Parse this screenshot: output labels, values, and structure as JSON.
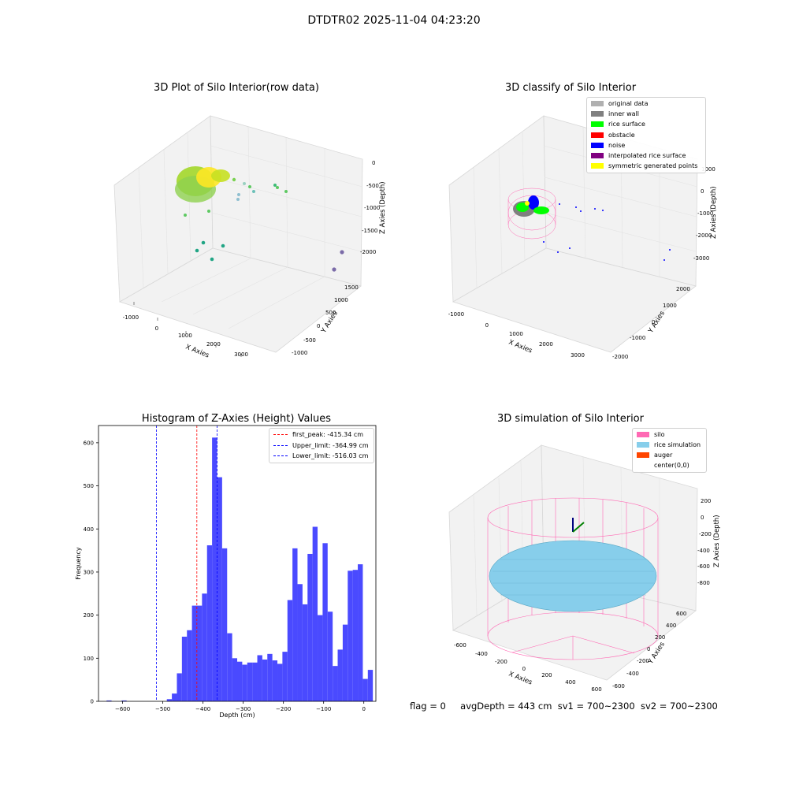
{
  "figure": {
    "suptitle": "DTDTR02 2025-11-04 04:23:20"
  },
  "panels": {
    "raw": {
      "title": "3D Plot of Silo Interior(row data)",
      "xlabel": "X Axies",
      "ylabel": "Y Axies",
      "zlabel": "Z Axies (Depth)",
      "xticks": [
        "-1000",
        "0",
        "1000",
        "2000",
        "3000"
      ],
      "yticks": [
        "-1000",
        "-500",
        "0",
        "500",
        "1000",
        "1500"
      ],
      "zticks": [
        "0",
        "-500",
        "-1000",
        "-1500",
        "-2000"
      ]
    },
    "classify": {
      "title": "3D classify of Silo Interior",
      "xlabel": "X Axies",
      "ylabel": "Y Axies",
      "zlabel": "Z Axies (Depth)",
      "xticks": [
        "-1000",
        "0",
        "1000",
        "2000",
        "3000"
      ],
      "yticks": [
        "-2000",
        "-1000",
        "0",
        "1000",
        "2000"
      ],
      "zticks": [
        "1000",
        "0",
        "-1000",
        "-2000",
        "-3000"
      ],
      "legend": [
        {
          "label": "original data",
          "color": "#b0b0b0"
        },
        {
          "label": "inner wall",
          "color": "#808080"
        },
        {
          "label": "rice surface",
          "color": "#00ff00"
        },
        {
          "label": "obstacle",
          "color": "#ff0000"
        },
        {
          "label": "noise",
          "color": "#0000ff"
        },
        {
          "label": "interpolated rice surface",
          "color": "#800080"
        },
        {
          "label": "symmetric generated points",
          "color": "#ffff00"
        }
      ]
    },
    "simulation": {
      "title": "3D simulation of Silo Interior",
      "xlabel": "X Axies",
      "ylabel": "Y Axies",
      "zlabel": "Z Axies (Depth)",
      "xticks": [
        "-600",
        "-400",
        "-200",
        "0",
        "200",
        "400",
        "600"
      ],
      "yticks": [
        "-600",
        "-400",
        "-200",
        "0",
        "200",
        "400",
        "600"
      ],
      "zticks": [
        "200",
        "0",
        "-200",
        "-400",
        "-600",
        "-800"
      ],
      "legend": [
        {
          "label": "silo",
          "color": "#ff69b4"
        },
        {
          "label": "rice simulation",
          "color": "#87ceeb"
        },
        {
          "label": "auger",
          "color": "#ff4500"
        },
        {
          "label": "center(0,0)",
          "color": "#ffffff"
        }
      ]
    }
  },
  "status": {
    "flag": "flag = 0",
    "avg_depth": "avgDepth = 443 cm",
    "sv1": "sv1 = 700~2300",
    "sv2": "sv2 = 700~2300"
  },
  "chart_data": {
    "type": "bar",
    "title": "Histogram of Z-Axies (Height) Values",
    "xlabel": "Depth (cm)",
    "ylabel": "Frequency",
    "xlim": [
      -660,
      30
    ],
    "ylim": [
      0,
      640
    ],
    "xticks": [
      -600,
      -500,
      -400,
      -300,
      -200,
      -100,
      0
    ],
    "yticks": [
      0,
      100,
      200,
      300,
      400,
      500,
      600
    ],
    "bar_color": "#4a4aff",
    "bin_edges_start": -640,
    "bin_width": 12.5,
    "values": [
      2,
      0,
      0,
      2,
      0,
      0,
      0,
      0,
      0,
      0,
      0,
      0,
      5,
      18,
      65,
      150,
      165,
      222,
      222,
      250,
      362,
      612,
      520,
      355,
      158,
      100,
      92,
      85,
      90,
      90,
      107,
      97,
      110,
      95,
      87,
      115,
      235,
      355,
      272,
      225,
      342,
      405,
      200,
      367,
      208,
      82,
      120,
      178,
      303,
      305,
      318,
      52,
      73
    ],
    "reference_lines": [
      {
        "label": "first_peak: -415.34 cm",
        "x": -415.34,
        "color": "#ff0000"
      },
      {
        "label": "Upper_limit: -364.99 cm",
        "x": -364.99,
        "color": "#0000ff"
      },
      {
        "label": "Lower_limit: -516.03 cm",
        "x": -516.03,
        "color": "#0000ff"
      }
    ]
  }
}
